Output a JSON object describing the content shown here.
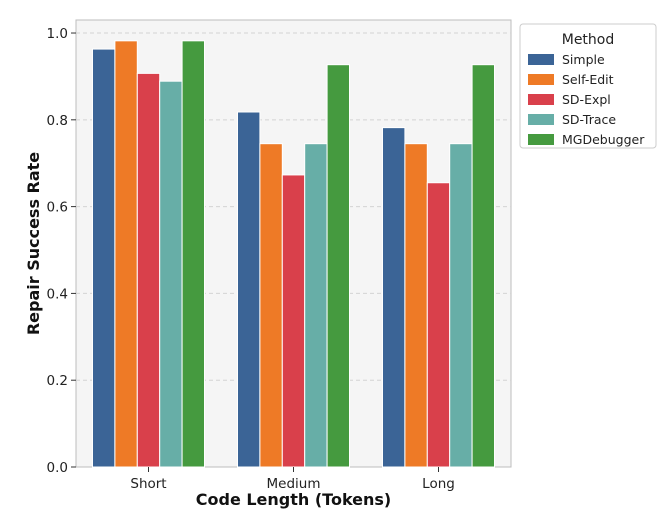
{
  "chart_data": {
    "type": "bar",
    "title": "",
    "xlabel": "Code Length (Tokens)",
    "ylabel": "Repair Success Rate",
    "categories": [
      "Short",
      "Medium",
      "Long"
    ],
    "ylim": [
      0,
      1.03
    ],
    "yticks": [
      0.0,
      0.2,
      0.4,
      0.6,
      0.8,
      1.0
    ],
    "ytick_labels": [
      "0.0",
      "0.2",
      "0.4",
      "0.6",
      "0.8",
      "1.0"
    ],
    "grid": true,
    "legend_title": "Method",
    "legend_position": "outside upper-right",
    "series": [
      {
        "name": "Simple",
        "color": "#3b6496",
        "values": [
          0.963,
          0.818,
          0.782
        ]
      },
      {
        "name": "Self-Edit",
        "color": "#ee7a26",
        "values": [
          0.982,
          0.745,
          0.745
        ]
      },
      {
        "name": "SD-Expl",
        "color": "#d9404b",
        "values": [
          0.907,
          0.673,
          0.655
        ]
      },
      {
        "name": "SD-Trace",
        "color": "#67aea7",
        "values": [
          0.889,
          0.745,
          0.745
        ]
      },
      {
        "name": "MGDebugger",
        "color": "#459a3f",
        "values": [
          0.982,
          0.927,
          0.927
        ]
      }
    ]
  }
}
